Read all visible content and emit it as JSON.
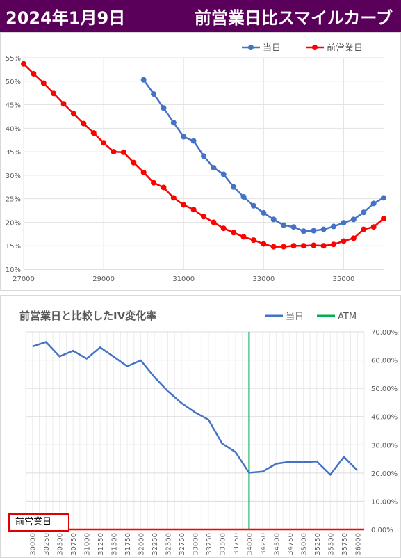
{
  "header": {
    "date": "2024年1月9日",
    "title": "前営業日比スマイルカーブ"
  },
  "colors": {
    "header_bg": "#5a005a",
    "today": "#4472c4",
    "prev_day": "#ff0000",
    "atm": "#00b050",
    "iv_change": "#4472c4",
    "label_border": "#e00000"
  },
  "chart_data": [
    {
      "type": "line",
      "title": "",
      "legend_position": "top-right",
      "grid": true,
      "xlim": [
        27000,
        36000
      ],
      "ylim": [
        0.1,
        0.55
      ],
      "x_ticks": [
        27000,
        29000,
        31000,
        33000,
        35000
      ],
      "x_tick_labels": [
        "27000",
        "29000",
        "31000",
        "33000",
        "35000"
      ],
      "y_ticks": [
        0.1,
        0.15,
        0.2,
        0.25,
        0.3,
        0.35,
        0.4,
        0.45,
        0.5,
        0.55
      ],
      "y_tick_labels": [
        "10%",
        "15%",
        "20%",
        "25%",
        "30%",
        "35%",
        "40%",
        "45%",
        "50%",
        "55%"
      ],
      "series": [
        {
          "name": "当日",
          "color": "#4472c4",
          "x": [
            30000,
            30250,
            30500,
            30750,
            31000,
            31250,
            31500,
            31750,
            32000,
            32250,
            32500,
            32750,
            33000,
            33250,
            33500,
            33750,
            34000,
            34250,
            34500,
            34750,
            35000,
            35250,
            35500,
            35750,
            36000
          ],
          "y": [
            0.503,
            0.473,
            0.443,
            0.412,
            0.382,
            0.373,
            0.341,
            0.316,
            0.302,
            0.275,
            0.254,
            0.235,
            0.22,
            0.206,
            0.194,
            0.19,
            0.181,
            0.182,
            0.185,
            0.191,
            0.199,
            0.206,
            0.221,
            0.24,
            0.252
          ]
        },
        {
          "name": "前営業日",
          "color": "#ff0000",
          "x": [
            27000,
            27250,
            27500,
            27750,
            28000,
            28250,
            28500,
            28750,
            29000,
            29250,
            29500,
            29750,
            30000,
            30250,
            30500,
            30750,
            31000,
            31250,
            31500,
            31750,
            32000,
            32250,
            32500,
            32750,
            33000,
            33250,
            33500,
            33750,
            34000,
            34250,
            34500,
            34750,
            35000,
            35250,
            35500,
            35750,
            36000
          ],
          "y": [
            0.537,
            0.516,
            0.496,
            0.474,
            0.452,
            0.431,
            0.41,
            0.39,
            0.369,
            0.35,
            0.349,
            0.327,
            0.306,
            0.284,
            0.274,
            0.252,
            0.237,
            0.227,
            0.212,
            0.2,
            0.187,
            0.178,
            0.169,
            0.162,
            0.154,
            0.148,
            0.148,
            0.15,
            0.15,
            0.151,
            0.15,
            0.153,
            0.16,
            0.166,
            0.185,
            0.19,
            0.208
          ]
        }
      ]
    },
    {
      "type": "line",
      "title": "前営業日と比較したIV変化率",
      "legend_position": "top-right",
      "grid": true,
      "ylim": [
        0.0,
        0.7
      ],
      "y_ticks": [
        0.0,
        0.1,
        0.2,
        0.3,
        0.4,
        0.5,
        0.6,
        0.7
      ],
      "y_tick_labels": [
        "0.00%",
        "10.00%",
        "20.00%",
        "30.00%",
        "40.00%",
        "50.00%",
        "60.00%",
        "70.00%"
      ],
      "categories": [
        "30000",
        "30250",
        "30500",
        "30750",
        "31000",
        "31250",
        "31500",
        "31750",
        "32000",
        "32250",
        "32500",
        "32750",
        "33000",
        "33250",
        "33500",
        "33750",
        "34000",
        "34250",
        "34500",
        "34750",
        "35000",
        "35250",
        "35500",
        "35750",
        "36000"
      ],
      "atm_category": "34000",
      "series": [
        {
          "name": "当日",
          "color": "#4472c4",
          "values": [
            0.648,
            0.664,
            0.613,
            0.633,
            0.605,
            0.645,
            0.612,
            0.578,
            0.599,
            0.54,
            0.49,
            0.448,
            0.415,
            0.389,
            0.305,
            0.274,
            0.201,
            0.205,
            0.233,
            0.24,
            0.238,
            0.241,
            0.194,
            0.257,
            0.209
          ]
        },
        {
          "name": "ATM",
          "color": "#00b050"
        },
        {
          "name": "前営業日",
          "color": "#ff0000"
        }
      ]
    }
  ]
}
